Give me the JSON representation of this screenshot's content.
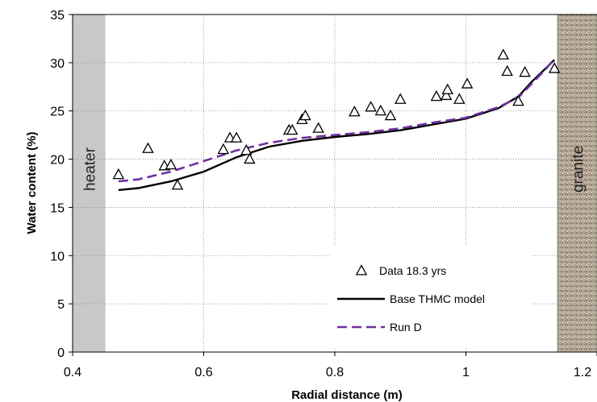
{
  "chart_data": {
    "type": "scatter",
    "xlabel": "Radial distance (m)",
    "ylabel": "Water content (%)",
    "xlim": [
      0.4,
      1.2
    ],
    "ylim": [
      0,
      35
    ],
    "x_ticks": [
      "0.4",
      "0.6",
      "0.8",
      "1",
      "1.2"
    ],
    "y_ticks": [
      "0",
      "5",
      "10",
      "15",
      "20",
      "25",
      "30",
      "35"
    ],
    "grid": "dotted",
    "legend_position": "bottom-right",
    "regions": [
      {
        "label": "heater",
        "x_range": [
          0.4,
          0.45
        ],
        "fill": "#c8c8c8"
      },
      {
        "label": "granite",
        "x_range": [
          1.14,
          1.2
        ],
        "fill": "#a89a8a"
      }
    ],
    "series": [
      {
        "name": "Data 18.3 yrs",
        "kind": "scatter",
        "marker": "triangle",
        "color": "#000000",
        "points": [
          [
            0.47,
            18.4
          ],
          [
            0.515,
            21.1
          ],
          [
            0.54,
            19.3
          ],
          [
            0.55,
            19.4
          ],
          [
            0.56,
            17.3
          ],
          [
            0.63,
            21.0
          ],
          [
            0.64,
            22.2
          ],
          [
            0.65,
            22.2
          ],
          [
            0.665,
            20.9
          ],
          [
            0.67,
            20.0
          ],
          [
            0.73,
            23.0
          ],
          [
            0.735,
            23.0
          ],
          [
            0.75,
            24.1
          ],
          [
            0.755,
            24.5
          ],
          [
            0.775,
            23.2
          ],
          [
            0.83,
            24.9
          ],
          [
            0.855,
            25.4
          ],
          [
            0.87,
            25.0
          ],
          [
            0.885,
            24.5
          ],
          [
            0.9,
            26.2
          ],
          [
            0.955,
            26.5
          ],
          [
            0.97,
            26.6
          ],
          [
            0.972,
            27.2
          ],
          [
            0.99,
            26.2
          ],
          [
            1.002,
            27.8
          ],
          [
            1.057,
            30.8
          ],
          [
            1.063,
            29.1
          ],
          [
            1.08,
            26.0
          ],
          [
            1.09,
            29.0
          ],
          [
            1.135,
            29.4
          ]
        ]
      },
      {
        "name": "Base THMC model",
        "kind": "line",
        "color": "#000000",
        "dash": "solid",
        "points": [
          [
            0.47,
            16.8
          ],
          [
            0.5,
            17.0
          ],
          [
            0.55,
            17.7
          ],
          [
            0.6,
            18.7
          ],
          [
            0.65,
            20.2
          ],
          [
            0.7,
            21.3
          ],
          [
            0.75,
            21.9
          ],
          [
            0.8,
            22.3
          ],
          [
            0.85,
            22.6
          ],
          [
            0.9,
            23.0
          ],
          [
            0.95,
            23.6
          ],
          [
            1.0,
            24.2
          ],
          [
            1.05,
            25.3
          ],
          [
            1.08,
            26.5
          ],
          [
            1.1,
            28.0
          ],
          [
            1.12,
            29.3
          ],
          [
            1.135,
            30.3
          ]
        ]
      },
      {
        "name": "Run D",
        "kind": "line",
        "color": "#7030a0",
        "dash": "dashed",
        "points": [
          [
            0.47,
            17.7
          ],
          [
            0.5,
            17.9
          ],
          [
            0.55,
            18.7
          ],
          [
            0.6,
            19.8
          ],
          [
            0.65,
            20.9
          ],
          [
            0.7,
            21.7
          ],
          [
            0.75,
            22.2
          ],
          [
            0.8,
            22.5
          ],
          [
            0.85,
            22.8
          ],
          [
            0.9,
            23.2
          ],
          [
            0.95,
            23.8
          ],
          [
            1.0,
            24.3
          ],
          [
            1.05,
            25.4
          ],
          [
            1.08,
            26.4
          ],
          [
            1.1,
            27.8
          ],
          [
            1.12,
            29.2
          ],
          [
            1.135,
            30.4
          ]
        ]
      }
    ]
  }
}
